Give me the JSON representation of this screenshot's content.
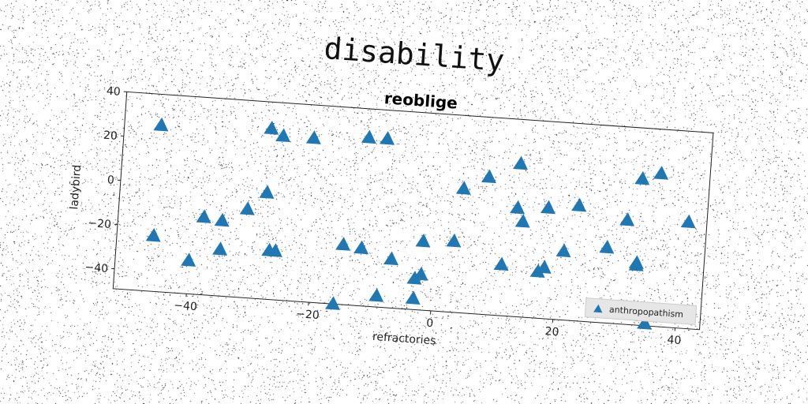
{
  "page_title": "disability",
  "chart_data": {
    "type": "scatter",
    "title": "reoblige",
    "xlabel": "refractories",
    "ylabel": "ladybird",
    "xlim": [
      -52,
      44
    ],
    "ylim": [
      -49,
      40
    ],
    "xticks": [
      -40,
      -20,
      0,
      20,
      40
    ],
    "yticks": [
      -40,
      -20,
      0,
      20,
      40
    ],
    "grid": false,
    "legend_position": "lower-right",
    "marker": "triangle-up",
    "series": [
      {
        "name": "anthropopathism",
        "color": "#1f77b4",
        "x": [
          -46,
          -46,
          -40,
          -38,
          -35,
          -35,
          -31,
          -28,
          -28,
          -27,
          -26,
          -26,
          -21,
          -16,
          -15,
          -12,
          -12,
          -9,
          -9,
          -7,
          -3,
          -3,
          -2,
          -2,
          3,
          4,
          8,
          11,
          13,
          13,
          14,
          17,
          18,
          18,
          21,
          23,
          28,
          31,
          33,
          33,
          33,
          35,
          36,
          41
        ],
        "y": [
          26,
          -24,
          -34,
          -14,
          -15,
          -28,
          -9,
          28,
          -1,
          -27,
          -27,
          25,
          25,
          -49,
          -22,
          27,
          -23,
          27,
          -44,
          -27,
          -44,
          -35,
          -33,
          -18,
          -17,
          7,
          13,
          -26,
          20,
          0,
          -6,
          -28,
          1,
          -26,
          -18,
          3,
          -15,
          -2,
          -21,
          17,
          -22,
          -48,
          20,
          -1
        ]
      }
    ]
  }
}
